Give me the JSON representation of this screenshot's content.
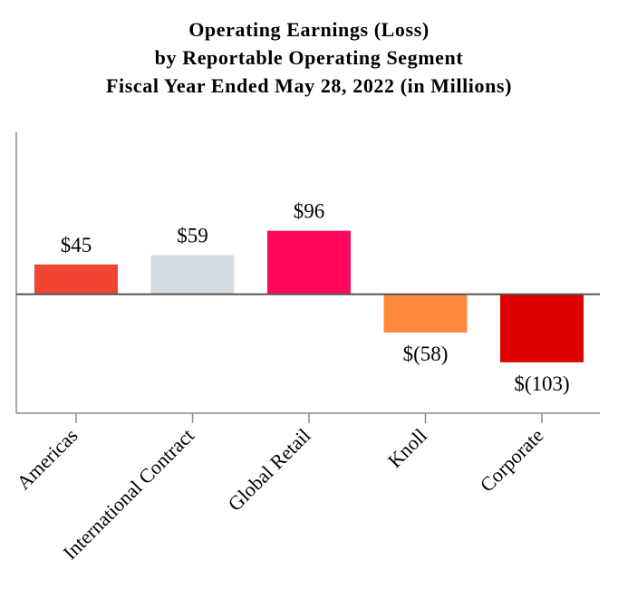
{
  "chart_data": {
    "type": "bar",
    "title_lines": [
      "Operating Earnings (Loss)",
      "by Reportable Operating Segment",
      "Fiscal Year Ended May 28, 2022 (in Millions)"
    ],
    "categories": [
      "Americas",
      "International Contract",
      "Global Retail",
      "Knoll",
      "Corporate"
    ],
    "values": [
      45,
      59,
      96,
      -58,
      -103
    ],
    "data_labels": [
      "$45",
      "$59",
      "$96",
      "$(58)",
      "$(103)"
    ],
    "colors": [
      "#f04533",
      "#d4dce1",
      "#ff0a5a",
      "#ff8a3d",
      "#dc0000"
    ],
    "xlabel": "",
    "ylabel": "",
    "ylim": [
      -180,
      245
    ],
    "grid": false,
    "legend": "none"
  }
}
